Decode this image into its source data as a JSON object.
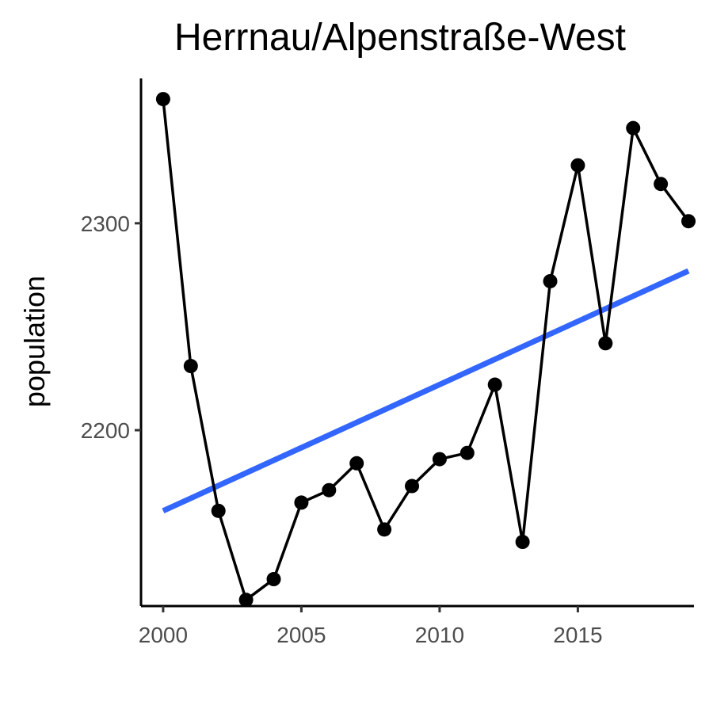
{
  "chart_data": {
    "type": "line",
    "title": "Herrnau/Alpenstraße-West",
    "xlabel": "",
    "ylabel": "population",
    "xlim": [
      1999.2,
      2019.2
    ],
    "ylim": [
      2115,
      2370
    ],
    "x_ticks": [
      2000,
      2005,
      2010,
      2015
    ],
    "y_ticks": [
      2200,
      2300
    ],
    "grid": false,
    "series": [
      {
        "x": [
          2000,
          2001,
          2002,
          2003,
          2004,
          2005,
          2006,
          2007,
          2008,
          2009,
          2010,
          2011,
          2012,
          2013,
          2014,
          2015,
          2016,
          2017,
          2018,
          2019
        ],
        "y": [
          2360,
          2231,
          2161,
          2118,
          2128,
          2165,
          2171,
          2184,
          2152,
          2173,
          2186,
          2189,
          2222,
          2146,
          2272,
          2328,
          2242,
          2346,
          2319,
          2301
        ],
        "color": "#000000"
      }
    ],
    "trend_line": {
      "x": [
        2000,
        2019
      ],
      "y": [
        2161,
        2277
      ],
      "color": "#3366ff"
    }
  }
}
